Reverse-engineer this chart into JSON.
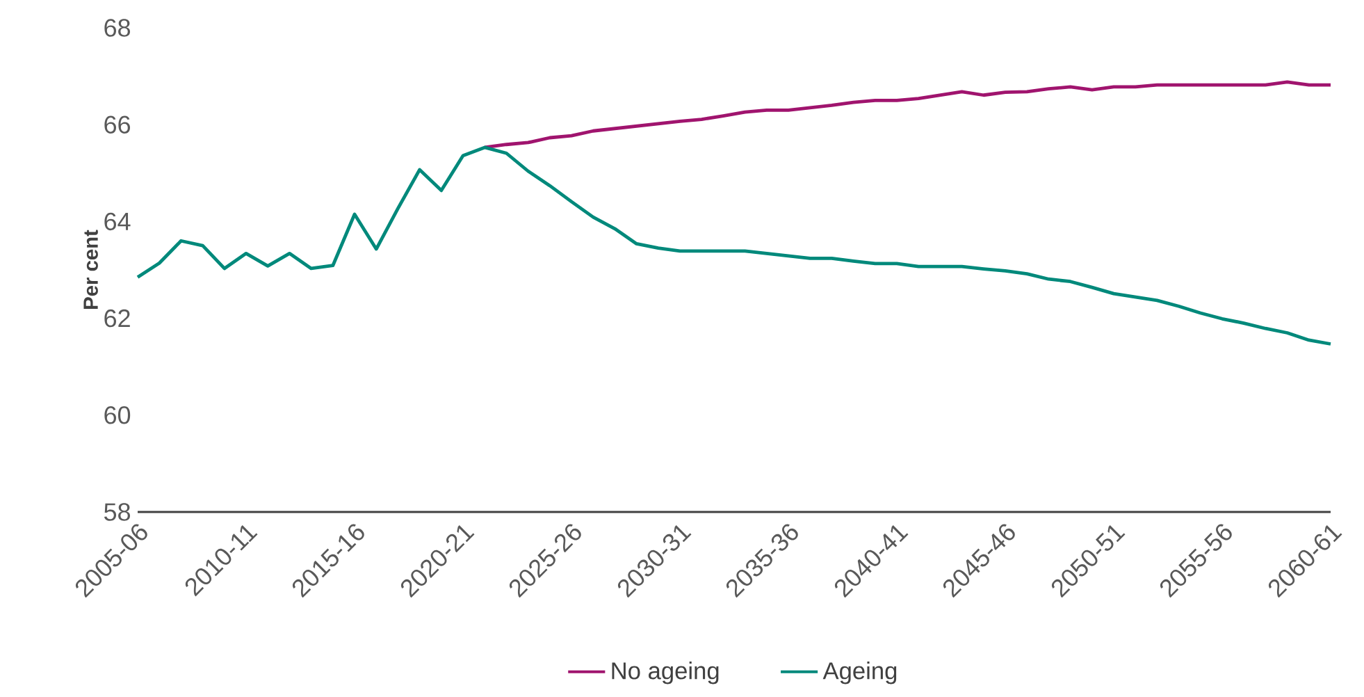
{
  "chart_data": {
    "type": "line",
    "ylabel": "Per cent",
    "categories": [
      "2005-06",
      null,
      null,
      null,
      null,
      "2010-11",
      null,
      null,
      null,
      null,
      "2015-16",
      null,
      null,
      null,
      null,
      "2020-21",
      null,
      null,
      null,
      null,
      "2025-26",
      null,
      null,
      null,
      null,
      "2030-31",
      null,
      null,
      null,
      null,
      "2035-36",
      null,
      null,
      null,
      null,
      "2040-41",
      null,
      null,
      null,
      null,
      "2045-46",
      null,
      null,
      null,
      null,
      "2050-51",
      null,
      null,
      null,
      null,
      "2055-56",
      null,
      null,
      null,
      null,
      "2060-61"
    ],
    "series": [
      {
        "name": "No ageing",
        "color": "#a0146e",
        "values": [
          null,
          null,
          null,
          null,
          null,
          null,
          null,
          null,
          null,
          null,
          null,
          null,
          null,
          null,
          null,
          null,
          65.53,
          65.59,
          65.63,
          65.73,
          65.77,
          65.87,
          65.92,
          65.97,
          66.02,
          66.07,
          66.11,
          66.18,
          66.26,
          66.3,
          66.3,
          66.35,
          66.4,
          66.46,
          66.5,
          66.5,
          66.54,
          66.61,
          66.68,
          66.61,
          66.67,
          66.68,
          66.74,
          66.78,
          66.72,
          66.78,
          66.78,
          66.82,
          66.82,
          66.82,
          66.82,
          66.82,
          66.82,
          66.88,
          66.82,
          66.82
        ]
      },
      {
        "name": "Ageing",
        "color": "#00897b",
        "values": [
          62.85,
          63.14,
          63.6,
          63.5,
          63.03,
          63.34,
          63.08,
          63.34,
          63.03,
          63.09,
          64.15,
          63.43,
          64.27,
          65.07,
          64.64,
          65.36,
          65.53,
          65.41,
          65.04,
          64.74,
          64.41,
          64.09,
          63.85,
          63.54,
          63.45,
          63.39,
          63.39,
          63.39,
          63.39,
          63.34,
          63.29,
          63.24,
          63.24,
          63.18,
          63.13,
          63.13,
          63.07,
          63.07,
          63.07,
          63.02,
          62.98,
          62.92,
          62.81,
          62.76,
          62.64,
          62.51,
          62.44,
          62.37,
          62.25,
          62.11,
          61.99,
          61.9,
          61.79,
          61.7,
          61.55,
          61.47
        ]
      }
    ],
    "ylim": [
      58,
      68
    ],
    "yticks": [
      58,
      60,
      62,
      64,
      66,
      68
    ],
    "legend": "bottom",
    "line_style": "solid",
    "marker": "none"
  }
}
